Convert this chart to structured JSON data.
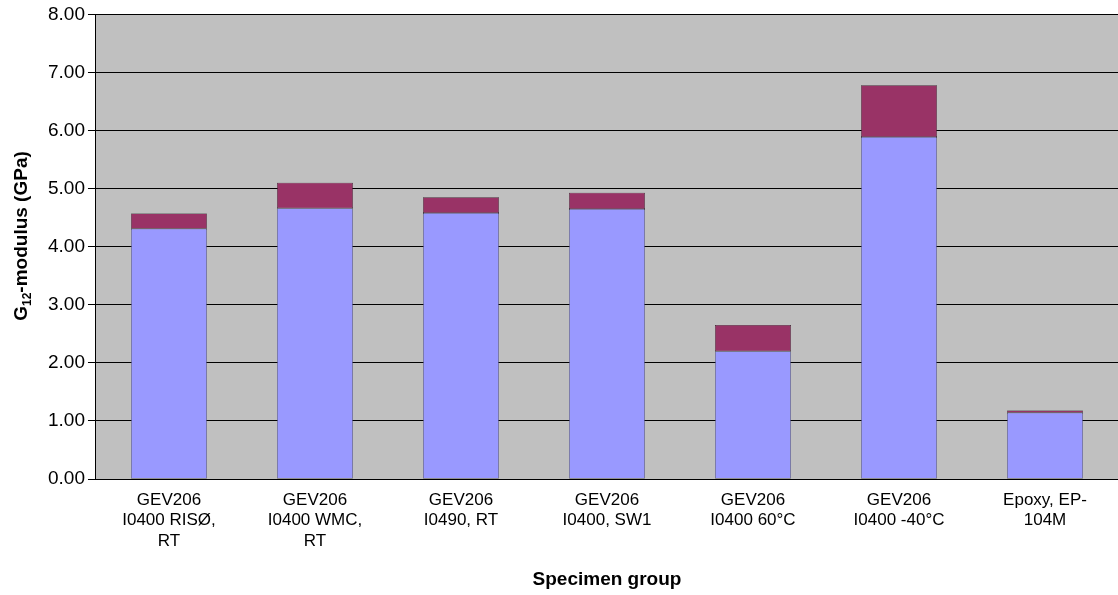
{
  "chart_data": {
    "type": "bar",
    "stacked": true,
    "xlabel": "Specimen group",
    "ylabel": "G$_{12}$-modulus (GPa)",
    "categories": [
      "GEV206 I0400 RISØ, RT",
      "GEV206 I0400 WMC, RT",
      "GEV206 I0490, RT",
      "GEV206 I0400, SW1",
      "GEV206 I0400 60°C",
      "GEV206 I0400 -40°C",
      "Epoxy, EP-104M"
    ],
    "series": [
      {
        "color": "#9999ff",
        "values": [
          4.31,
          4.66,
          4.58,
          4.65,
          2.2,
          5.89,
          1.14
        ]
      },
      {
        "color": "#993366",
        "values": [
          0.26,
          0.44,
          0.27,
          0.28,
          0.45,
          0.89,
          0.04
        ]
      }
    ],
    "ylim": [
      0,
      8
    ],
    "yticks": [
      {
        "value": 0,
        "label": "0.00"
      },
      {
        "value": 1,
        "label": "1.00"
      },
      {
        "value": 2,
        "label": "2.00"
      },
      {
        "value": 3,
        "label": "3.00"
      },
      {
        "value": 4,
        "label": "4.00"
      },
      {
        "value": 5,
        "label": "5.00"
      },
      {
        "value": 6,
        "label": "6.00"
      },
      {
        "value": 7,
        "label": "7.00"
      },
      {
        "value": 8,
        "label": "8.00"
      }
    ],
    "grid": "y",
    "legend": false
  }
}
